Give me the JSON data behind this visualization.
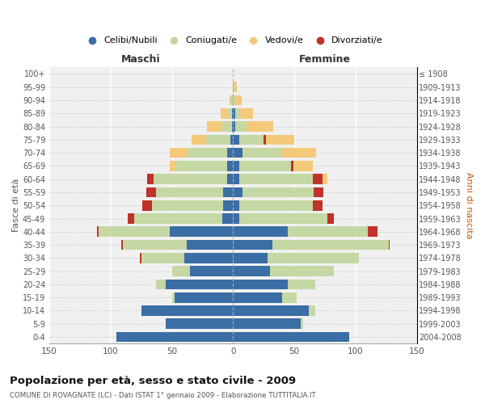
{
  "age_groups": [
    "0-4",
    "5-9",
    "10-14",
    "15-19",
    "20-24",
    "25-29",
    "30-34",
    "35-39",
    "40-44",
    "45-49",
    "50-54",
    "55-59",
    "60-64",
    "65-69",
    "70-74",
    "75-79",
    "80-84",
    "85-89",
    "90-94",
    "95-99",
    "100+"
  ],
  "birth_years": [
    "2004-2008",
    "1999-2003",
    "1994-1998",
    "1989-1993",
    "1984-1988",
    "1979-1983",
    "1974-1978",
    "1969-1973",
    "1964-1968",
    "1959-1963",
    "1954-1958",
    "1949-1953",
    "1944-1948",
    "1939-1943",
    "1934-1938",
    "1929-1933",
    "1924-1928",
    "1919-1923",
    "1914-1918",
    "1909-1913",
    "≤ 1908"
  ],
  "maschi": {
    "celibi": [
      95,
      55,
      75,
      48,
      55,
      35,
      40,
      38,
      52,
      9,
      8,
      8,
      5,
      5,
      5,
      2,
      1,
      1,
      0,
      0,
      0
    ],
    "coniugati": [
      0,
      0,
      0,
      2,
      8,
      15,
      35,
      52,
      58,
      72,
      58,
      55,
      60,
      42,
      32,
      20,
      8,
      4,
      2,
      0,
      0
    ],
    "vedovi": [
      0,
      0,
      0,
      0,
      0,
      0,
      0,
      1,
      1,
      2,
      1,
      1,
      2,
      5,
      15,
      12,
      12,
      5,
      1,
      0,
      0
    ],
    "divorziati": [
      0,
      0,
      0,
      0,
      0,
      0,
      1,
      1,
      1,
      5,
      8,
      8,
      5,
      0,
      0,
      0,
      0,
      0,
      0,
      0,
      0
    ]
  },
  "femmine": {
    "nubili": [
      95,
      55,
      62,
      40,
      45,
      30,
      28,
      32,
      45,
      5,
      5,
      8,
      5,
      5,
      8,
      5,
      2,
      2,
      0,
      0,
      0
    ],
    "coniugate": [
      0,
      2,
      5,
      12,
      22,
      52,
      75,
      95,
      65,
      72,
      60,
      58,
      60,
      42,
      32,
      20,
      9,
      4,
      2,
      1,
      0
    ],
    "vedove": [
      0,
      0,
      0,
      0,
      0,
      0,
      0,
      0,
      1,
      2,
      2,
      5,
      12,
      18,
      28,
      25,
      22,
      10,
      5,
      2,
      0
    ],
    "divorziate": [
      0,
      0,
      0,
      0,
      0,
      0,
      0,
      1,
      8,
      5,
      8,
      8,
      8,
      2,
      0,
      2,
      0,
      0,
      0,
      0,
      0
    ]
  },
  "colors": {
    "celibi_nubili": "#3a6ea5",
    "coniugati": "#c5d8a4",
    "vedovi": "#f5c97a",
    "divorziati": "#c0322a"
  },
  "xlim": 150,
  "title": "Popolazione per età, sesso e stato civile - 2009",
  "subtitle": "COMUNE DI ROVAGNATE (LC) - Dati ISTAT 1° gennaio 2009 - Elaborazione TUTTITALIA.IT",
  "ylabel_left": "Fasce di età",
  "ylabel_right": "Anni di nascita",
  "xlabel_maschi": "Maschi",
  "xlabel_femmine": "Femmine",
  "legend_labels": [
    "Celibi/Nubili",
    "Coniugati/e",
    "Vedovi/e",
    "Divorziati/e"
  ],
  "bg_color": "#ffffff",
  "plot_bg_color": "#f0f0f0"
}
